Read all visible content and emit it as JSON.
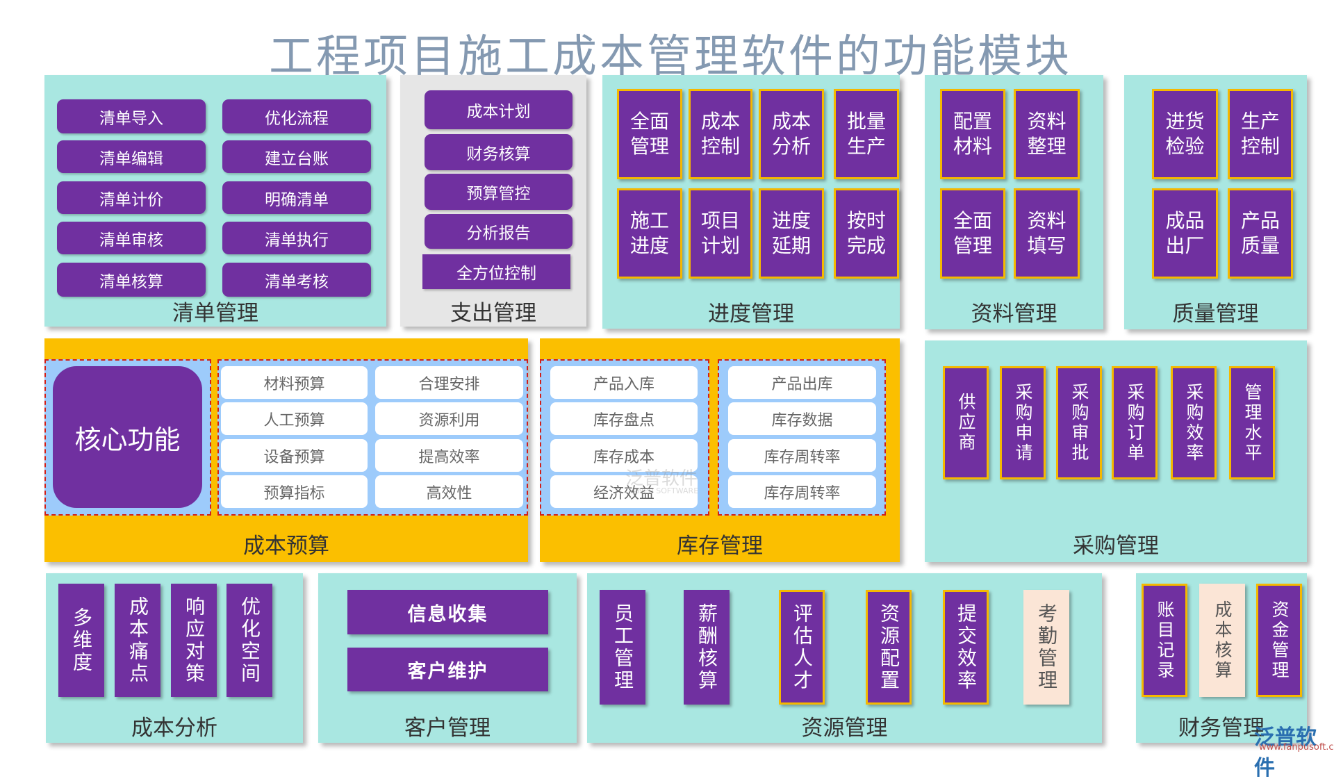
{
  "title": "工程项目施工成本管理软件的功能模块",
  "colors": {
    "purple": "#7030a0",
    "teal": "#a9e7e1",
    "orange": "#fbbf00",
    "grey": "#e6e6e6",
    "light_blue": "#9dcbfb",
    "gold": "#f5b800",
    "beige": "#fbe5d6",
    "title": "#8499b1"
  },
  "modules": {
    "qingdan": {
      "label": "清单管理",
      "items": [
        "清单导入",
        "优化流程",
        "清单编辑",
        "建立台账",
        "清单计价",
        "明确清单",
        "清单审核",
        "清单执行",
        "清单核算",
        "清单考核"
      ]
    },
    "zhichu": {
      "label": "支出管理",
      "items": [
        "成本计划",
        "财务核算",
        "预算管控",
        "分析报告",
        "全方位控制"
      ]
    },
    "jindu": {
      "label": "进度管理",
      "items": [
        "全面\n管理",
        "成本\n控制",
        "成本\n分析",
        "批量\n生产",
        "施工\n进度",
        "项目\n计划",
        "进度\n延期",
        "按时\n完成"
      ]
    },
    "ziliao": {
      "label": "资料管理",
      "items": [
        "配置\n材料",
        "资料\n整理",
        "全面\n管理",
        "资料\n填写"
      ]
    },
    "zhiliang": {
      "label": "质量管理",
      "items": [
        "进货\n检验",
        "生产\n控制",
        "成品\n出厂",
        "产品\n质量"
      ]
    },
    "yusuan": {
      "label": "成本预算",
      "core": "核心功能",
      "items": [
        "材料预算",
        "合理安排",
        "人工预算",
        "资源利用",
        "设备预算",
        "提高效率",
        "预算指标",
        "高效性"
      ]
    },
    "kucun": {
      "label": "库存管理",
      "left": [
        "产品入库",
        "库存盘点",
        "库存成本",
        "经济效益"
      ],
      "right": [
        "产品出库",
        "库存数据",
        "库存周转率",
        "库存周转率"
      ]
    },
    "caigou": {
      "label": "采购管理",
      "items": [
        "供应商",
        "采购申请",
        "采购审批",
        "采购订单",
        "采购效率",
        "管理水平"
      ]
    },
    "fenxi": {
      "label": "成本分析",
      "items": [
        "多维度",
        "成本痛点",
        "响应对策",
        "优化空间"
      ]
    },
    "kehu": {
      "label": "客户管理",
      "items": [
        "信息收集",
        "客户维护"
      ]
    },
    "ziyuan": {
      "label": "资源管理",
      "items": [
        "员工管理",
        "薪酬核算",
        "评估人才",
        "资源配置",
        "提交效率",
        "考勤管理"
      ]
    },
    "caiwu": {
      "label": "财务管理",
      "items": [
        "账目记录",
        "成本核算",
        "资金管理"
      ]
    }
  },
  "watermark": {
    "brand": "泛普软件",
    "url": "www.fanpusoft.com",
    "mid_brand": "泛普软件",
    "mid_sub": "FANPU SOFTWARE"
  }
}
